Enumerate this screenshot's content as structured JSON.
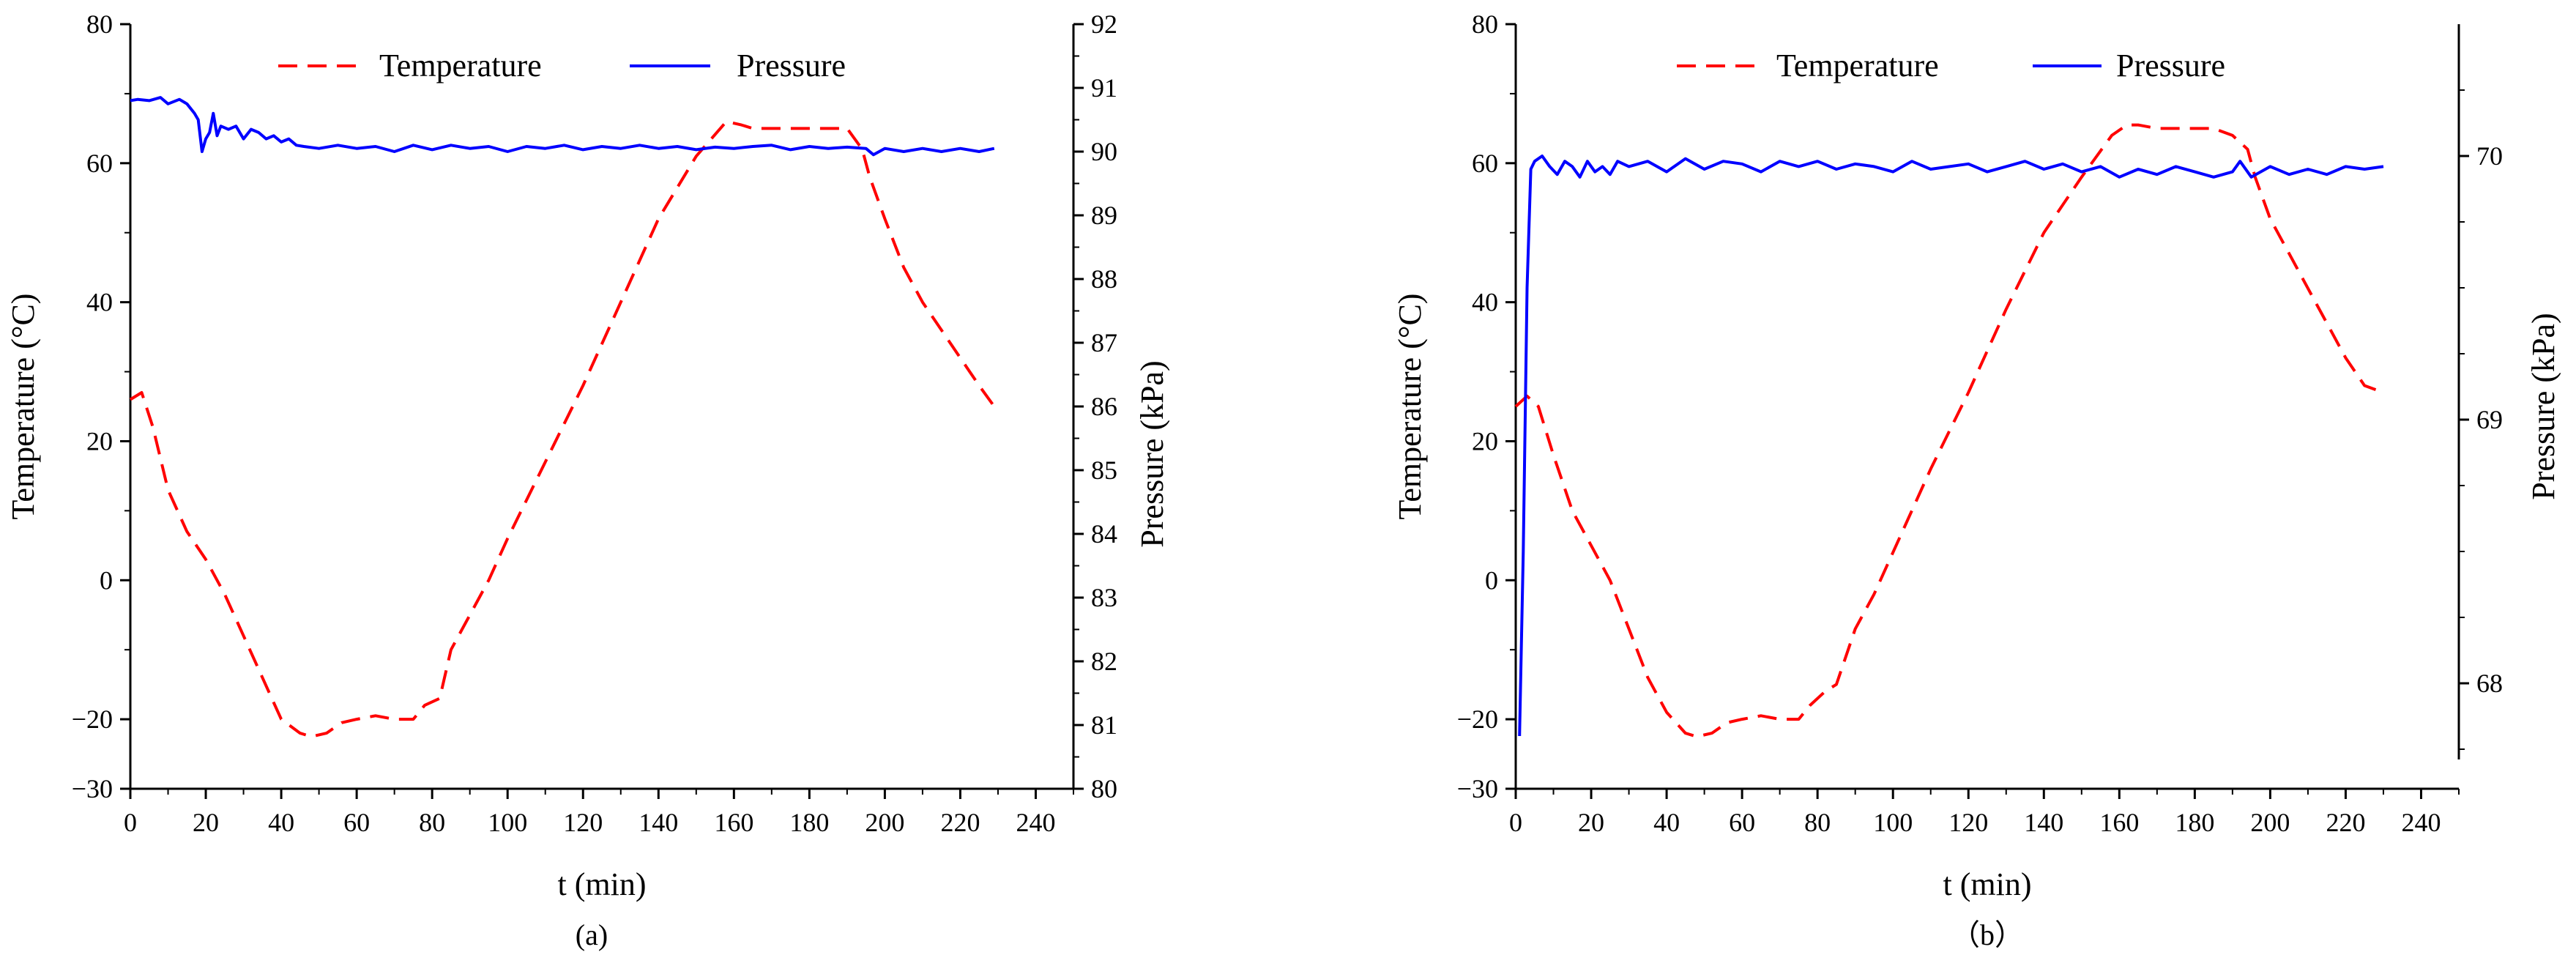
{
  "chart_data": [
    {
      "id": "a",
      "type": "line",
      "caption": "(a)",
      "xlabel": "t (min)",
      "ylabel": "Temperature (°C)",
      "y2label": "Pressure (kPa)",
      "xlim": [
        0,
        250
      ],
      "ylim": [
        -30,
        80
      ],
      "y2lim": [
        80,
        92
      ],
      "xticks": [
        0,
        20,
        40,
        60,
        80,
        100,
        120,
        140,
        160,
        180,
        200,
        220,
        240
      ],
      "yticks": [
        -20,
        0,
        20,
        40,
        60,
        80
      ],
      "y2ticks": [
        80,
        81,
        82,
        83,
        84,
        85,
        86,
        87,
        88,
        89,
        90,
        91,
        92
      ],
      "legend": [
        "Temperature",
        "Pressure"
      ],
      "series": [
        {
          "name": "Temperature",
          "axis": "left",
          "color": "#ff0000",
          "dash": "dash",
          "x": [
            0,
            3,
            6,
            10,
            15,
            20,
            25,
            30,
            35,
            40,
            45,
            48,
            52,
            56,
            60,
            65,
            70,
            75,
            78,
            82,
            85,
            90,
            95,
            100,
            110,
            120,
            130,
            140,
            150,
            158,
            162,
            165,
            170,
            175,
            180,
            185,
            190,
            194,
            196,
            200,
            205,
            210,
            215,
            220,
            225,
            229
          ],
          "values": [
            26,
            27,
            22,
            13,
            7,
            3,
            -2,
            -8,
            -14,
            -20,
            -22,
            -22.5,
            -22,
            -20.5,
            -20,
            -19.5,
            -20,
            -20,
            -18,
            -17,
            -10,
            -5,
            0,
            6,
            17,
            28,
            40,
            52,
            61,
            66,
            65.5,
            65,
            65,
            65,
            65,
            65,
            65,
            62,
            58,
            52,
            45,
            40,
            36,
            32,
            28,
            25
          ]
        },
        {
          "name": "Pressure",
          "axis": "right",
          "color": "#0000ff",
          "dash": "solid",
          "x": [
            0,
            2,
            5,
            8,
            10,
            13,
            15,
            17,
            18,
            19,
            20,
            21,
            22,
            23,
            24,
            26,
            28,
            30,
            32,
            34,
            36,
            38,
            40,
            42,
            44,
            46,
            50,
            55,
            60,
            65,
            70,
            75,
            80,
            85,
            90,
            95,
            100,
            105,
            110,
            115,
            120,
            125,
            130,
            135,
            140,
            145,
            150,
            155,
            160,
            165,
            170,
            175,
            180,
            185,
            190,
            195,
            197,
            200,
            205,
            210,
            215,
            220,
            225,
            229
          ],
          "values": [
            90.8,
            90.82,
            90.8,
            90.85,
            90.75,
            90.82,
            90.75,
            90.6,
            90.5,
            90.0,
            90.2,
            90.3,
            90.6,
            90.25,
            90.4,
            90.35,
            90.4,
            90.2,
            90.35,
            90.3,
            90.2,
            90.25,
            90.15,
            90.2,
            90.1,
            90.08,
            90.05,
            90.1,
            90.05,
            90.08,
            90.0,
            90.1,
            90.03,
            90.1,
            90.05,
            90.08,
            90.0,
            90.08,
            90.05,
            90.1,
            90.03,
            90.08,
            90.05,
            90.1,
            90.05,
            90.08,
            90.03,
            90.07,
            90.05,
            90.08,
            90.1,
            90.03,
            90.08,
            90.05,
            90.07,
            90.05,
            89.95,
            90.05,
            90.0,
            90.05,
            90.0,
            90.05,
            90.0,
            90.05
          ]
        }
      ]
    },
    {
      "id": "b",
      "type": "line",
      "caption": "（b）",
      "xlabel": "t (min)",
      "ylabel": "Temperature (°C)",
      "y2label": "Pressure (kPa)",
      "xlim": [
        0,
        250
      ],
      "ylim": [
        -30,
        80
      ],
      "y2lim": [
        67.6,
        70.5
      ],
      "xticks": [
        0,
        20,
        40,
        60,
        80,
        100,
        120,
        140,
        160,
        180,
        200,
        220,
        240
      ],
      "yticks": [
        -20,
        0,
        20,
        40,
        60,
        80
      ],
      "y2ticks": [
        68,
        69,
        70
      ],
      "legend": [
        "Temperature",
        "Pressure"
      ],
      "series": [
        {
          "name": "Temperature",
          "axis": "left",
          "color": "#ff0000",
          "dash": "dash",
          "x": [
            0,
            3,
            6,
            10,
            15,
            20,
            25,
            30,
            35,
            40,
            45,
            48,
            52,
            56,
            60,
            65,
            70,
            75,
            78,
            82,
            85,
            90,
            95,
            100,
            110,
            120,
            130,
            140,
            150,
            158,
            162,
            165,
            170,
            175,
            180,
            185,
            190,
            194,
            196,
            200,
            205,
            210,
            215,
            220,
            225,
            230
          ],
          "values": [
            25,
            26.5,
            25,
            18,
            10,
            5,
            0,
            -7,
            -14,
            -19,
            -22,
            -22.5,
            -22,
            -20.5,
            -20,
            -19.5,
            -20,
            -20,
            -18,
            -16,
            -15,
            -7,
            -2,
            4,
            16,
            27,
            39,
            50,
            58,
            64,
            65.5,
            65.5,
            65,
            65,
            65,
            65,
            64,
            62,
            58,
            52,
            47,
            42,
            37,
            32,
            28,
            27
          ]
        },
        {
          "name": "Pressure",
          "axis": "right",
          "color": "#0000ff",
          "dash": "solid",
          "x": [
            1,
            2,
            3,
            4,
            5,
            7,
            9,
            11,
            13,
            15,
            17,
            19,
            21,
            23,
            25,
            27,
            30,
            35,
            40,
            45,
            50,
            55,
            60,
            65,
            70,
            75,
            80,
            85,
            90,
            95,
            100,
            105,
            110,
            115,
            120,
            125,
            130,
            135,
            140,
            145,
            150,
            155,
            160,
            165,
            170,
            175,
            180,
            185,
            190,
            192,
            195,
            200,
            205,
            210,
            215,
            220,
            225,
            230
          ],
          "values": [
            67.8,
            68.5,
            69.5,
            69.95,
            69.98,
            70.0,
            69.96,
            69.93,
            69.98,
            69.96,
            69.92,
            69.98,
            69.94,
            69.96,
            69.93,
            69.98,
            69.96,
            69.98,
            69.94,
            69.99,
            69.95,
            69.98,
            69.97,
            69.94,
            69.98,
            69.96,
            69.98,
            69.95,
            69.97,
            69.96,
            69.94,
            69.98,
            69.95,
            69.96,
            69.97,
            69.94,
            69.96,
            69.98,
            69.95,
            69.97,
            69.94,
            69.96,
            69.92,
            69.95,
            69.93,
            69.96,
            69.94,
            69.92,
            69.94,
            69.98,
            69.92,
            69.96,
            69.93,
            69.95,
            69.93,
            69.96,
            69.95,
            69.96
          ]
        }
      ]
    }
  ]
}
